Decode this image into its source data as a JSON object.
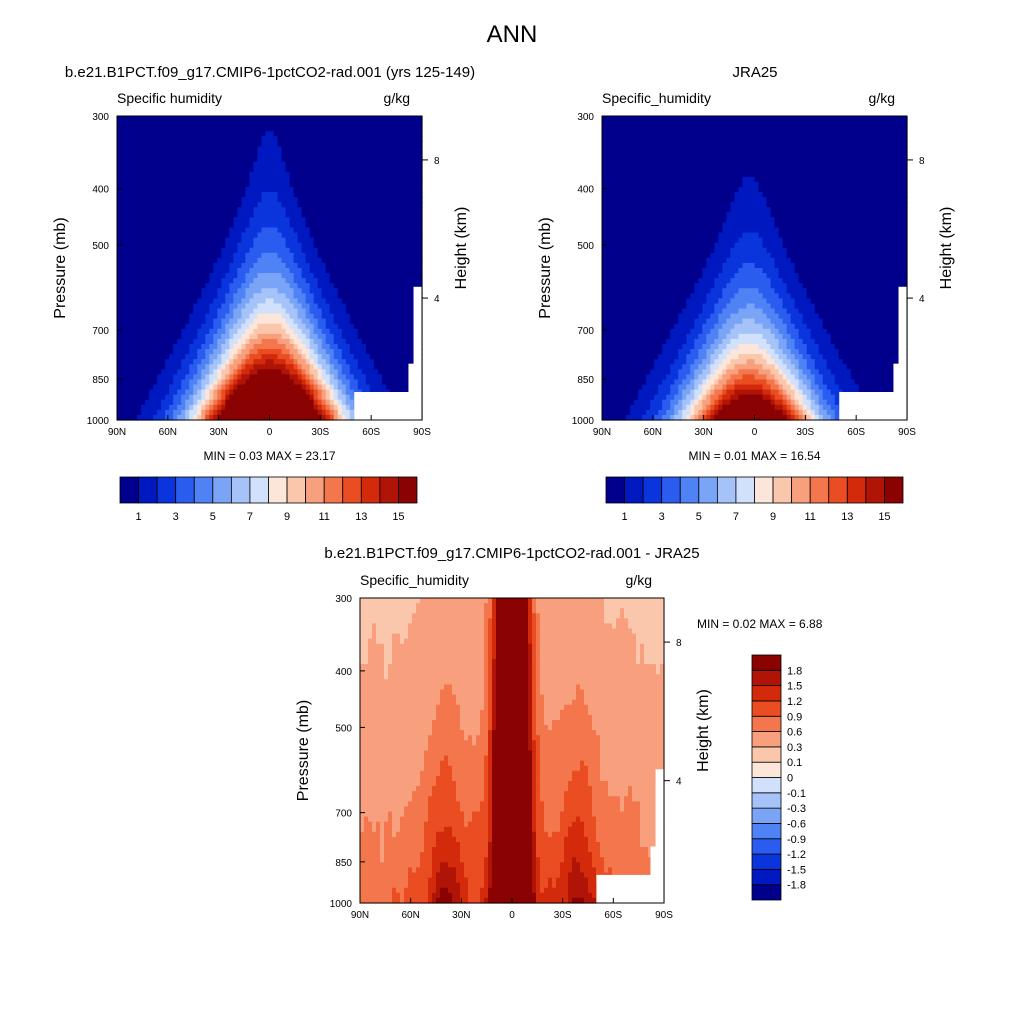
{
  "figure": {
    "title": "ANN"
  },
  "colors": {
    "frame": "#000000",
    "missing": "#ffffff"
  },
  "chart_data": [
    {
      "type": "heatmap",
      "panel_title": "b.e21.B1PCT.f09_g17.CMIP6-1pctCO2-rad.001 (yrs 125-149)",
      "variable_label": "Specific humidity",
      "units_label": "g/kg",
      "ylabel": "Pressure (mb)",
      "ylabel_right": "Height (km)",
      "x_ticks": [
        "90N",
        "60N",
        "30N",
        "0",
        "30S",
        "60S",
        "90S"
      ],
      "x_tick_values": [
        90,
        60,
        30,
        0,
        -30,
        -60,
        -90
      ],
      "xlim": [
        90,
        -90
      ],
      "y_ticks": [
        "300",
        "400",
        "500",
        "700",
        "850",
        "1000"
      ],
      "y_tick_values": [
        300,
        400,
        500,
        700,
        850,
        1000
      ],
      "ylim": [
        1000,
        300
      ],
      "y_scale": "log",
      "right_ticks": [
        "8",
        "4"
      ],
      "right_tick_pressures": [
        357,
        617
      ],
      "stats": {
        "min_label": "MIN =",
        "min": "0.03",
        "max_label": "MAX =",
        "max": "23.17"
      },
      "field": {
        "kind": "humidity",
        "peak": 23.17,
        "lat_center": 0,
        "width_bottom": 28,
        "width_top": 6,
        "scale_height": 0.36,
        "floor": 0.03
      },
      "colorbar": {
        "orientation": "horizontal",
        "levels": [
          1,
          2,
          3,
          4,
          5,
          6,
          7,
          8,
          9,
          10,
          11,
          12,
          13,
          14,
          15
        ],
        "labels": [
          "1",
          "3",
          "5",
          "7",
          "9",
          "11",
          "13",
          "15"
        ],
        "colors": [
          "#00008c",
          "#0018c0",
          "#0a34dc",
          "#2a5cf0",
          "#4f82f5",
          "#7aa5f7",
          "#a6c3f9",
          "#d2e1fb",
          "#fbe6d9",
          "#fbc7ac",
          "#f8a07e",
          "#f4764d",
          "#ea4d22",
          "#d22a0a",
          "#b01406",
          "#8a0202"
        ]
      }
    },
    {
      "type": "heatmap",
      "panel_title": "JRA25",
      "variable_label": "Specific_humidity",
      "units_label": "g/kg",
      "ylabel": "Pressure (mb)",
      "ylabel_right": "Height (km)",
      "x_ticks": [
        "90N",
        "60N",
        "30N",
        "0",
        "30S",
        "60S",
        "90S"
      ],
      "x_tick_values": [
        90,
        60,
        30,
        0,
        -30,
        -60,
        -90
      ],
      "xlim": [
        90,
        -90
      ],
      "y_ticks": [
        "300",
        "400",
        "500",
        "700",
        "850",
        "1000"
      ],
      "y_tick_values": [
        300,
        400,
        500,
        700,
        850,
        1000
      ],
      "ylim": [
        1000,
        300
      ],
      "y_scale": "log",
      "right_ticks": [
        "8",
        "4"
      ],
      "right_tick_pressures": [
        357,
        617
      ],
      "stats": {
        "min_label": "MIN =",
        "min": "0.01",
        "max_label": "MAX =",
        "max": "16.54"
      },
      "field": {
        "kind": "humidity",
        "peak": 16.54,
        "lat_center": 3,
        "width_bottom": 26,
        "width_top": 5,
        "scale_height": 0.33,
        "floor": 0.01
      },
      "colorbar": {
        "orientation": "horizontal",
        "levels": [
          1,
          2,
          3,
          4,
          5,
          6,
          7,
          8,
          9,
          10,
          11,
          12,
          13,
          14,
          15
        ],
        "labels": [
          "1",
          "3",
          "5",
          "7",
          "9",
          "11",
          "13",
          "15"
        ],
        "colors": [
          "#00008c",
          "#0018c0",
          "#0a34dc",
          "#2a5cf0",
          "#4f82f5",
          "#7aa5f7",
          "#a6c3f9",
          "#d2e1fb",
          "#fbe6d9",
          "#fbc7ac",
          "#f8a07e",
          "#f4764d",
          "#ea4d22",
          "#d22a0a",
          "#b01406",
          "#8a0202"
        ]
      }
    },
    {
      "type": "heatmap",
      "panel_title": "b.e21.B1PCT.f09_g17.CMIP6-1pctCO2-rad.001 - JRA25",
      "variable_label": "Specific_humidity",
      "units_label": "g/kg",
      "ylabel": "Pressure (mb)",
      "ylabel_right": "Height (km)",
      "x_ticks": [
        "90N",
        "60N",
        "30N",
        "0",
        "30S",
        "60S",
        "90S"
      ],
      "x_tick_values": [
        90,
        60,
        30,
        0,
        -30,
        -60,
        -90
      ],
      "xlim": [
        90,
        -90
      ],
      "y_ticks": [
        "300",
        "400",
        "500",
        "700",
        "850",
        "1000"
      ],
      "y_tick_values": [
        300,
        400,
        500,
        700,
        850,
        1000
      ],
      "ylim": [
        1000,
        300
      ],
      "y_scale": "log",
      "right_ticks": [
        "8",
        "4"
      ],
      "right_tick_pressures": [
        357,
        617
      ],
      "stats": {
        "min_label": "MIN =",
        "min": "0.02",
        "max_label": "MAX =",
        "max": "6.88"
      },
      "field": {
        "kind": "difference",
        "peak": 6.88,
        "floor": 0.02
      },
      "colorbar": {
        "orientation": "vertical",
        "levels": [
          -1.8,
          -1.5,
          -1.2,
          -0.9,
          -0.6,
          -0.3,
          -0.1,
          0,
          0.1,
          0.3,
          0.6,
          0.9,
          1.2,
          1.5,
          1.8
        ],
        "labels": [
          "-1.8",
          "-1.5",
          "-1.2",
          "-0.9",
          "-0.6",
          "-0.3",
          "-0.1",
          "0",
          "0.1",
          "0.3",
          "0.6",
          "0.9",
          "1.2",
          "1.5",
          "1.8"
        ],
        "colors": [
          "#00008c",
          "#0018c0",
          "#0a34dc",
          "#2a5cf0",
          "#4f82f5",
          "#7aa5f7",
          "#a6c3f9",
          "#d2e1fb",
          "#fbe6d9",
          "#fbc7ac",
          "#f8a07e",
          "#f4764d",
          "#ea4d22",
          "#d22a0a",
          "#b01406",
          "#8a0202"
        ]
      }
    }
  ]
}
